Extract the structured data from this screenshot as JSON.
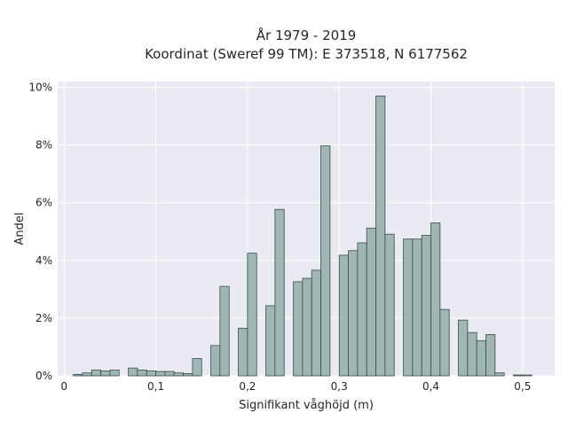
{
  "chart_data": {
    "type": "bar",
    "title_line1": "År 1979 - 2019",
    "title_line2": "Koordinat (Sweref 99 TM): E 373518, N 6177562",
    "xlabel": "Signifikant våghöjd (m)",
    "ylabel": "Andel",
    "xlim": [
      -0.007,
      0.535
    ],
    "ylim": [
      0,
      10.2
    ],
    "x_ticks": [
      {
        "value": 0,
        "label": "0"
      },
      {
        "value": 0.1,
        "label": "0,1"
      },
      {
        "value": 0.2,
        "label": "0,2"
      },
      {
        "value": 0.3,
        "label": "0,3"
      },
      {
        "value": 0.4,
        "label": "0,4"
      },
      {
        "value": 0.5,
        "label": "0,5"
      }
    ],
    "y_ticks": [
      {
        "value": 0,
        "label": "0%"
      },
      {
        "value": 2,
        "label": "2%"
      },
      {
        "value": 4,
        "label": "4%"
      },
      {
        "value": 6,
        "label": "6%"
      },
      {
        "value": 8,
        "label": "8%"
      },
      {
        "value": 10,
        "label": "10%"
      }
    ],
    "grid": true,
    "bin_width": 0.01,
    "bin_starts": [
      0.01,
      0.02,
      0.03,
      0.04,
      0.05,
      0.07,
      0.08,
      0.09,
      0.1,
      0.11,
      0.12,
      0.13,
      0.14,
      0.16,
      0.17,
      0.19,
      0.2,
      0.22,
      0.23,
      0.25,
      0.26,
      0.27,
      0.28,
      0.3,
      0.31,
      0.32,
      0.33,
      0.34,
      0.35,
      0.37,
      0.38,
      0.39,
      0.4,
      0.41,
      0.43,
      0.44,
      0.45,
      0.46,
      0.47,
      0.49,
      0.5
    ],
    "values": [
      0.05,
      0.1,
      0.2,
      0.17,
      0.2,
      0.27,
      0.2,
      0.17,
      0.15,
      0.15,
      0.1,
      0.08,
      0.6,
      1.05,
      3.1,
      1.65,
      4.25,
      2.43,
      5.77,
      3.26,
      3.38,
      3.66,
      7.97,
      4.18,
      4.34,
      4.61,
      5.12,
      9.7,
      4.91,
      4.74,
      4.74,
      4.87,
      5.3,
      2.3,
      1.93,
      1.5,
      1.22,
      1.43,
      0.1,
      0.03,
      0.03
    ],
    "colors": {
      "plot_background": "#eaeaf2",
      "bar_fill": "#9fb6b5",
      "bar_edge": "#3a4a48",
      "grid": "#ffffff"
    }
  }
}
